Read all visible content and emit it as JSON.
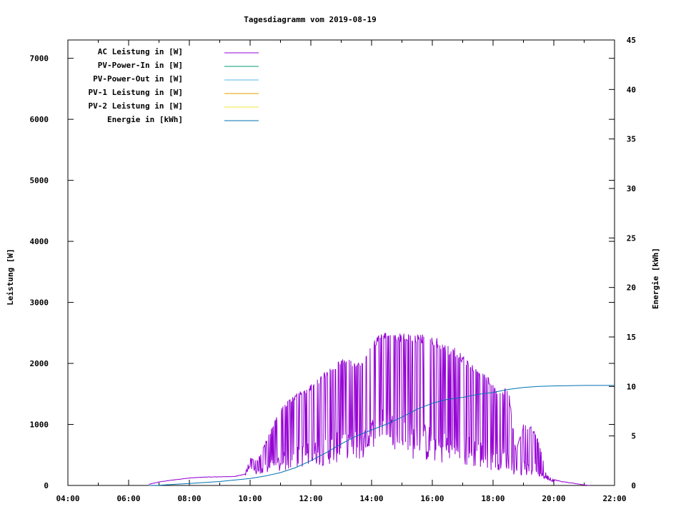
{
  "chart_data": {
    "type": "line",
    "title": "Tagesdiagramm vom 2019-08-19",
    "ylabel": "Leistung [W]",
    "y2label": "Energie [kWh]",
    "x_ticks": [
      "04:00",
      "06:00",
      "08:00",
      "10:00",
      "12:00",
      "14:00",
      "16:00",
      "18:00",
      "20:00",
      "22:00"
    ],
    "y_ticks": [
      "0",
      "1000",
      "2000",
      "3000",
      "4000",
      "5000",
      "6000",
      "7000"
    ],
    "y2_ticks": [
      "0",
      "5",
      "10",
      "15",
      "20",
      "25",
      "30",
      "35",
      "40",
      "45"
    ],
    "xlim": [
      "04:00",
      "22:00"
    ],
    "ylim": [
      0,
      7300
    ],
    "y2lim": [
      0,
      45
    ],
    "legend_position": "top-left",
    "grid": false,
    "series": [
      {
        "name": "AC Leistung in [W]",
        "color": "#9400d3",
        "axis": "left",
        "envelope": {
          "x": [
            "06:40",
            "07:00",
            "07:30",
            "08:00",
            "08:30",
            "09:00",
            "09:30",
            "09:50",
            "10:00",
            "10:15",
            "10:30",
            "10:45",
            "11:00",
            "11:15",
            "11:30",
            "11:45",
            "12:00",
            "12:15",
            "12:30",
            "12:45",
            "13:00",
            "13:15",
            "13:30",
            "13:45",
            "14:00",
            "14:15",
            "14:30",
            "14:45",
            "15:00",
            "15:15",
            "15:30",
            "15:45",
            "16:00",
            "16:15",
            "16:30",
            "16:45",
            "17:00",
            "17:15",
            "17:30",
            "17:45",
            "18:00",
            "18:15",
            "18:30",
            "18:45",
            "19:00",
            "19:15",
            "19:30",
            "19:45",
            "20:00",
            "20:15",
            "20:30",
            "20:45",
            "21:00",
            "21:10"
          ],
          "high": [
            20,
            60,
            95,
            125,
            140,
            145,
            150,
            190,
            450,
            420,
            700,
            1000,
            1250,
            1400,
            1500,
            1580,
            1650,
            1750,
            1900,
            2000,
            2080,
            2100,
            2050,
            2050,
            2300,
            2500,
            2550,
            2470,
            2500,
            2480,
            2480,
            2480,
            2450,
            2400,
            2300,
            2250,
            2150,
            2020,
            1900,
            1850,
            1650,
            1550,
            1620,
            570,
            1000,
            980,
            750,
            180,
            100,
            70,
            50,
            30,
            10,
            0
          ],
          "low": [
            0,
            40,
            70,
            100,
            110,
            120,
            130,
            150,
            300,
            150,
            200,
            200,
            200,
            250,
            280,
            300,
            310,
            320,
            330,
            350,
            400,
            450,
            420,
            400,
            600,
            700,
            800,
            600,
            500,
            450,
            400,
            400,
            350,
            350,
            330,
            320,
            300,
            300,
            280,
            250,
            250,
            250,
            200,
            170,
            150,
            150,
            150,
            100,
            50,
            30,
            15,
            5,
            0,
            0
          ]
        }
      },
      {
        "name": "PV-Power-In in [W]",
        "color": "#009e73",
        "axis": "left",
        "x": [],
        "values": []
      },
      {
        "name": "PV-Power-Out in [W]",
        "color": "#56b4e9",
        "axis": "left",
        "x": [],
        "values": []
      },
      {
        "name": "PV-1 Leistung in [W]",
        "color": "#e69f00",
        "axis": "left",
        "x": [],
        "values": []
      },
      {
        "name": "PV-2 Leistung in [W]",
        "color": "#f0e442",
        "axis": "left",
        "x": [],
        "values": []
      },
      {
        "name": "Energie in [kWh]",
        "color": "#0072b2",
        "axis": "right",
        "x": [
          "06:40",
          "07:00",
          "08:00",
          "09:00",
          "10:00",
          "10:30",
          "11:00",
          "11:30",
          "12:00",
          "12:30",
          "13:00",
          "13:30",
          "14:00",
          "14:30",
          "15:00",
          "15:30",
          "16:00",
          "16:30",
          "17:00",
          "17:30",
          "18:00",
          "18:30",
          "19:00",
          "19:30",
          "20:00",
          "20:30",
          "21:00",
          "22:00"
        ],
        "values": [
          0,
          0.02,
          0.2,
          0.4,
          0.7,
          0.95,
          1.3,
          1.8,
          2.5,
          3.3,
          4.2,
          5.0,
          5.6,
          6.2,
          6.9,
          7.7,
          8.3,
          8.7,
          8.9,
          9.2,
          9.4,
          9.7,
          9.9,
          10.0,
          10.05,
          10.08,
          10.1,
          10.1
        ]
      }
    ]
  }
}
